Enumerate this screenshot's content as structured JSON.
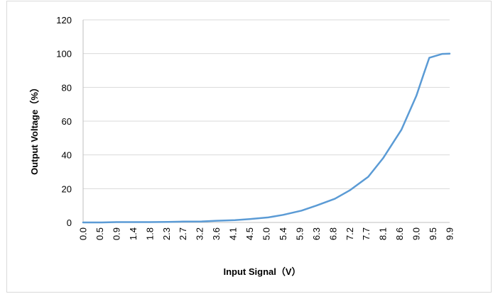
{
  "chart_data": {
    "type": "line",
    "title": "",
    "xlabel": "Input Signal（V）",
    "ylabel": "Output Voltage（%）",
    "ylim": [
      0,
      120
    ],
    "yticks": [
      "0",
      "20",
      "40",
      "60",
      "80",
      "100",
      "120"
    ],
    "grid": true,
    "legend": "none",
    "categories": [
      "0.0",
      "0.5",
      "0.9",
      "1.4",
      "1.8",
      "2.3",
      "2.7",
      "3.2",
      "3.6",
      "4.1",
      "4.5",
      "5.0",
      "5.4",
      "5.9",
      "6.3",
      "6.8",
      "7.2",
      "7.7",
      "8.1",
      "8.6",
      "9.0",
      "9.5",
      "9.9"
    ],
    "series": [
      {
        "name": "",
        "color": "#5b9bd5",
        "x": [
          0.0,
          0.5,
          0.9,
          1.4,
          1.8,
          2.3,
          2.7,
          3.2,
          3.6,
          4.1,
          4.5,
          5.0,
          5.4,
          5.9,
          6.3,
          6.8,
          7.2,
          7.7,
          8.1,
          8.6,
          9.0,
          9.2,
          9.35,
          9.5,
          9.7,
          9.9
        ],
        "values": [
          0,
          0,
          0.2,
          0.2,
          0.2,
          0.3,
          0.5,
          0.6,
          1.0,
          1.4,
          2.0,
          3.0,
          4.5,
          7.0,
          10.0,
          14.0,
          19.0,
          27.0,
          38.0,
          55.0,
          75.0,
          88.0,
          97.5,
          98.5,
          99.8,
          100
        ]
      }
    ]
  }
}
